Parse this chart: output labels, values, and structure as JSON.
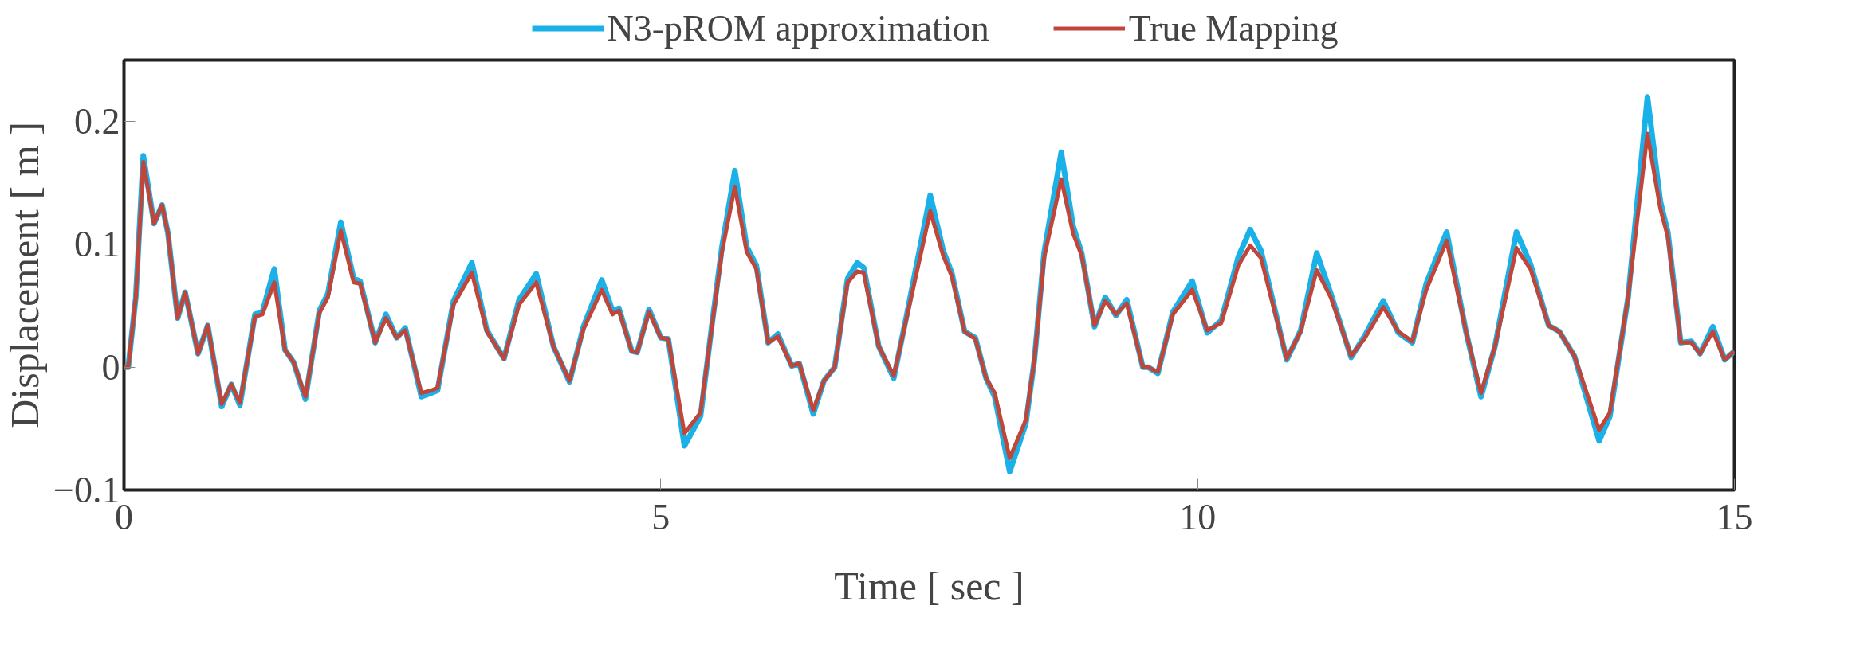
{
  "chart_data": {
    "type": "line",
    "xlabel": "Time [ sec ]",
    "ylabel": "Displacement [ m ]",
    "xlim": [
      0,
      15
    ],
    "ylim": [
      -0.1,
      0.25
    ],
    "xticks": [
      0,
      5,
      10,
      15
    ],
    "yticks": [
      {
        "value": -0.1,
        "label": "−0.1"
      },
      0,
      0.1,
      0.2
    ],
    "grid": false,
    "legend": "top",
    "line_style": "solid",
    "marker": "none",
    "series": [
      {
        "name": "N3-pROM approximation",
        "color": "#1ab0e8",
        "x": [
          0,
          0.04,
          0.11,
          0.18,
          0.28,
          0.355,
          0.41,
          0.5,
          0.57,
          0.69,
          0.78,
          0.91,
          1.0,
          1.08,
          1.22,
          1.29,
          1.4,
          1.5,
          1.58,
          1.69,
          1.82,
          1.9,
          2.02,
          2.14,
          2.2,
          2.34,
          2.44,
          2.54,
          2.62,
          2.77,
          2.86,
          2.92,
          3.07,
          3.24,
          3.38,
          3.54,
          3.68,
          3.84,
          4.0,
          4.15,
          4.28,
          4.45,
          4.55,
          4.61,
          4.73,
          4.78,
          4.89,
          5.0,
          5.07,
          5.22,
          5.37,
          5.47,
          5.57,
          5.69,
          5.8,
          5.89,
          6.0,
          6.09,
          6.22,
          6.29,
          6.42,
          6.52,
          6.62,
          6.74,
          6.83,
          6.89,
          7.03,
          7.17,
          7.29,
          7.51,
          7.63,
          7.71,
          7.83,
          7.93,
          8.03,
          8.11,
          8.25,
          8.4,
          8.48,
          8.57,
          8.73,
          8.84,
          8.92,
          9.04,
          9.14,
          9.24,
          9.34,
          9.49,
          9.54,
          9.63,
          9.77,
          9.95,
          10.09,
          10.22,
          10.38,
          10.49,
          10.59,
          10.83,
          10.96,
          11.11,
          11.24,
          11.43,
          11.56,
          11.73,
          11.87,
          12.0,
          12.13,
          12.32,
          12.5,
          12.64,
          12.77,
          12.97,
          13.1,
          13.27,
          13.37,
          13.51,
          13.74,
          13.84,
          14.01,
          14.19,
          14.31,
          14.38,
          14.5,
          14.6,
          14.68,
          14.8,
          14.91,
          15.0
        ],
        "values": [
          0,
          0,
          0.057,
          0.172,
          0.117,
          0.132,
          0.109,
          0.04,
          0.061,
          0.011,
          0.034,
          -0.032,
          -0.014,
          -0.031,
          0.043,
          0.045,
          0.08,
          0.014,
          0.004,
          -0.026,
          0.046,
          0.06,
          0.118,
          0.072,
          0.07,
          0.02,
          0.043,
          0.024,
          0.032,
          -0.024,
          -0.021,
          -0.019,
          0.054,
          0.085,
          0.03,
          0.007,
          0.055,
          0.076,
          0.017,
          -0.012,
          0.033,
          0.071,
          0.046,
          0.048,
          0.013,
          0.012,
          0.047,
          0.024,
          0.023,
          -0.064,
          -0.04,
          0.03,
          0.098,
          0.16,
          0.098,
          0.083,
          0.02,
          0.027,
          0.001,
          0.003,
          -0.038,
          -0.011,
          0,
          0.072,
          0.085,
          0.081,
          0.017,
          -0.009,
          0.042,
          0.14,
          0.095,
          0.077,
          0.029,
          0.024,
          -0.009,
          -0.024,
          -0.085,
          -0.046,
          0.006,
          0.093,
          0.175,
          0.115,
          0.093,
          0.033,
          0.057,
          0.042,
          0.055,
          0,
          0,
          -0.005,
          0.045,
          0.07,
          0.028,
          0.038,
          0.09,
          0.112,
          0.095,
          0.006,
          0.03,
          0.093,
          0.06,
          0.008,
          0.026,
          0.054,
          0.028,
          0.02,
          0.068,
          0.11,
          0.029,
          -0.024,
          0.017,
          0.11,
          0.084,
          0.034,
          0.029,
          0.009,
          -0.06,
          -0.04,
          0.057,
          0.22,
          0.135,
          0.11,
          0.02,
          0.021,
          0.011,
          0.033,
          0.006,
          0.013
        ]
      },
      {
        "name": "True Mapping",
        "color": "#c0463a",
        "x": [
          0,
          0.04,
          0.11,
          0.18,
          0.28,
          0.355,
          0.41,
          0.5,
          0.57,
          0.69,
          0.78,
          0.91,
          1.0,
          1.08,
          1.22,
          1.29,
          1.4,
          1.5,
          1.58,
          1.69,
          1.82,
          1.9,
          2.02,
          2.14,
          2.2,
          2.34,
          2.44,
          2.54,
          2.62,
          2.77,
          2.86,
          2.92,
          3.07,
          3.24,
          3.38,
          3.54,
          3.68,
          3.84,
          4.0,
          4.15,
          4.28,
          4.45,
          4.55,
          4.61,
          4.73,
          4.78,
          4.89,
          5.0,
          5.07,
          5.22,
          5.37,
          5.47,
          5.57,
          5.69,
          5.8,
          5.89,
          6.0,
          6.09,
          6.22,
          6.29,
          6.42,
          6.52,
          6.62,
          6.74,
          6.83,
          6.89,
          7.03,
          7.17,
          7.29,
          7.51,
          7.63,
          7.71,
          7.83,
          7.93,
          8.03,
          8.11,
          8.25,
          8.4,
          8.48,
          8.57,
          8.73,
          8.84,
          8.92,
          9.04,
          9.14,
          9.24,
          9.34,
          9.49,
          9.54,
          9.63,
          9.77,
          9.95,
          10.09,
          10.22,
          10.38,
          10.49,
          10.59,
          10.83,
          10.96,
          11.11,
          11.24,
          11.43,
          11.56,
          11.73,
          11.87,
          12.0,
          12.13,
          12.32,
          12.5,
          12.64,
          12.77,
          12.97,
          13.1,
          13.27,
          13.37,
          13.51,
          13.74,
          13.84,
          14.01,
          14.19,
          14.31,
          14.38,
          14.5,
          14.6,
          14.68,
          14.8,
          14.91,
          15.0
        ],
        "values": [
          0,
          0,
          0.057,
          0.167,
          0.117,
          0.132,
          0.109,
          0.04,
          0.061,
          0.011,
          0.034,
          -0.03,
          -0.014,
          -0.029,
          0.041,
          0.043,
          0.069,
          0.014,
          0.004,
          -0.024,
          0.044,
          0.057,
          0.111,
          0.069,
          0.068,
          0.02,
          0.04,
          0.024,
          0.03,
          -0.021,
          -0.019,
          -0.017,
          0.051,
          0.077,
          0.029,
          0.007,
          0.051,
          0.069,
          0.017,
          -0.011,
          0.031,
          0.063,
          0.043,
          0.046,
          0.013,
          0.012,
          0.045,
          0.024,
          0.023,
          -0.054,
          -0.037,
          0.029,
          0.094,
          0.147,
          0.094,
          0.08,
          0.02,
          0.025,
          0.001,
          0.003,
          -0.035,
          -0.011,
          0,
          0.069,
          0.078,
          0.077,
          0.017,
          -0.007,
          0.04,
          0.127,
          0.091,
          0.074,
          0.029,
          0.023,
          -0.009,
          -0.021,
          -0.074,
          -0.043,
          0.006,
          0.089,
          0.153,
          0.109,
          0.091,
          0.034,
          0.054,
          0.043,
          0.052,
          0,
          0,
          -0.004,
          0.043,
          0.063,
          0.03,
          0.036,
          0.083,
          0.099,
          0.089,
          0.007,
          0.029,
          0.079,
          0.057,
          0.009,
          0.024,
          0.049,
          0.029,
          0.021,
          0.063,
          0.103,
          0.029,
          -0.021,
          0.017,
          0.097,
          0.08,
          0.034,
          0.029,
          0.009,
          -0.051,
          -0.037,
          0.057,
          0.19,
          0.129,
          0.106,
          0.02,
          0.02,
          0.011,
          0.029,
          0.006,
          0.013
        ]
      }
    ]
  }
}
